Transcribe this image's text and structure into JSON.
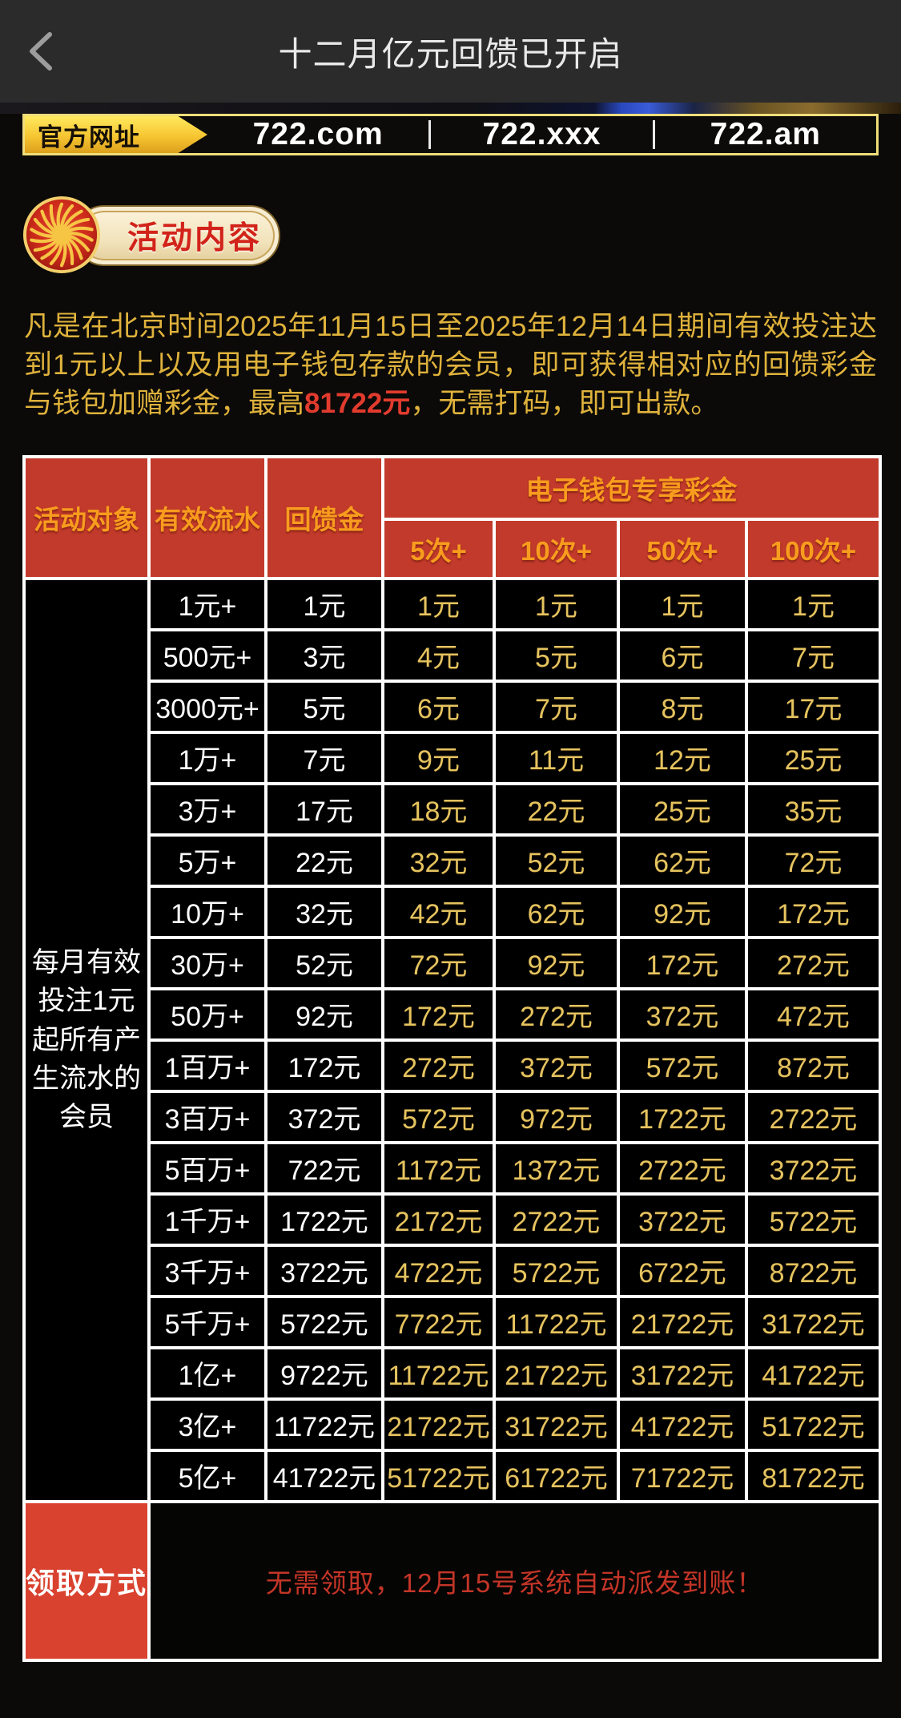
{
  "topbar": {
    "title": "十二月亿元回馈已开启"
  },
  "banner": {
    "label": "官方网址",
    "domains": [
      "722.com",
      "722.xxx",
      "722.am"
    ]
  },
  "badge": {
    "label": "活动内容"
  },
  "intro": {
    "part1": "凡是在北京时间2025年11月15日至2025年12月14日期间有效投注达到1元以上以及用电子钱包存款的会员，即可获得相对应的回馈彩金与钱包加赠彩金，最高",
    "highlight": "81722元",
    "part2": "，无需打码，即可出款。"
  },
  "colors": {
    "header_red": "#c23a2b",
    "claim_red": "#d9422e",
    "header_orange": "#f89c1e",
    "gold_value": "#e5c35f",
    "intro_gold": "#dfb23c",
    "highlight_red": "#e23b2e",
    "banner_yellow": "#f6c531"
  },
  "table": {
    "headers": {
      "col1": "活动对象",
      "col2": "有效流水",
      "col3": "回馈金",
      "group": "电子钱包专享彩金",
      "subs": [
        "5次+",
        "10次+",
        "50次+",
        "100次+"
      ]
    },
    "member_note": "每月有效投注1元起所有产生流水的会员",
    "rows": [
      {
        "flow": "1元+",
        "rebate": "1元",
        "wallet": [
          "1元",
          "1元",
          "1元",
          "1元"
        ]
      },
      {
        "flow": "500元+",
        "rebate": "3元",
        "wallet": [
          "4元",
          "5元",
          "6元",
          "7元"
        ]
      },
      {
        "flow": "3000元+",
        "rebate": "5元",
        "wallet": [
          "6元",
          "7元",
          "8元",
          "17元"
        ]
      },
      {
        "flow": "1万+",
        "rebate": "7元",
        "wallet": [
          "9元",
          "11元",
          "12元",
          "25元"
        ]
      },
      {
        "flow": "3万+",
        "rebate": "17元",
        "wallet": [
          "18元",
          "22元",
          "25元",
          "35元"
        ]
      },
      {
        "flow": "5万+",
        "rebate": "22元",
        "wallet": [
          "32元",
          "52元",
          "62元",
          "72元"
        ]
      },
      {
        "flow": "10万+",
        "rebate": "32元",
        "wallet": [
          "42元",
          "62元",
          "92元",
          "172元"
        ]
      },
      {
        "flow": "30万+",
        "rebate": "52元",
        "wallet": [
          "72元",
          "92元",
          "172元",
          "272元"
        ]
      },
      {
        "flow": "50万+",
        "rebate": "92元",
        "wallet": [
          "172元",
          "272元",
          "372元",
          "472元"
        ]
      },
      {
        "flow": "1百万+",
        "rebate": "172元",
        "wallet": [
          "272元",
          "372元",
          "572元",
          "872元"
        ]
      },
      {
        "flow": "3百万+",
        "rebate": "372元",
        "wallet": [
          "572元",
          "972元",
          "1722元",
          "2722元"
        ]
      },
      {
        "flow": "5百万+",
        "rebate": "722元",
        "wallet": [
          "1172元",
          "1372元",
          "2722元",
          "3722元"
        ]
      },
      {
        "flow": "1千万+",
        "rebate": "1722元",
        "wallet": [
          "2172元",
          "2722元",
          "3722元",
          "5722元"
        ]
      },
      {
        "flow": "3千万+",
        "rebate": "3722元",
        "wallet": [
          "4722元",
          "5722元",
          "6722元",
          "8722元"
        ]
      },
      {
        "flow": "5千万+",
        "rebate": "5722元",
        "wallet": [
          "7722元",
          "11722元",
          "21722元",
          "31722元"
        ]
      },
      {
        "flow": "1亿+",
        "rebate": "9722元",
        "wallet": [
          "11722元",
          "21722元",
          "31722元",
          "41722元"
        ]
      },
      {
        "flow": "3亿+",
        "rebate": "11722元",
        "wallet": [
          "21722元",
          "31722元",
          "41722元",
          "51722元"
        ]
      },
      {
        "flow": "5亿+",
        "rebate": "41722元",
        "wallet": [
          "51722元",
          "61722元",
          "71722元",
          "81722元"
        ]
      }
    ],
    "claim": {
      "label": "领取方式",
      "message": "无需领取，12月15号系统自动派发到账！"
    }
  }
}
